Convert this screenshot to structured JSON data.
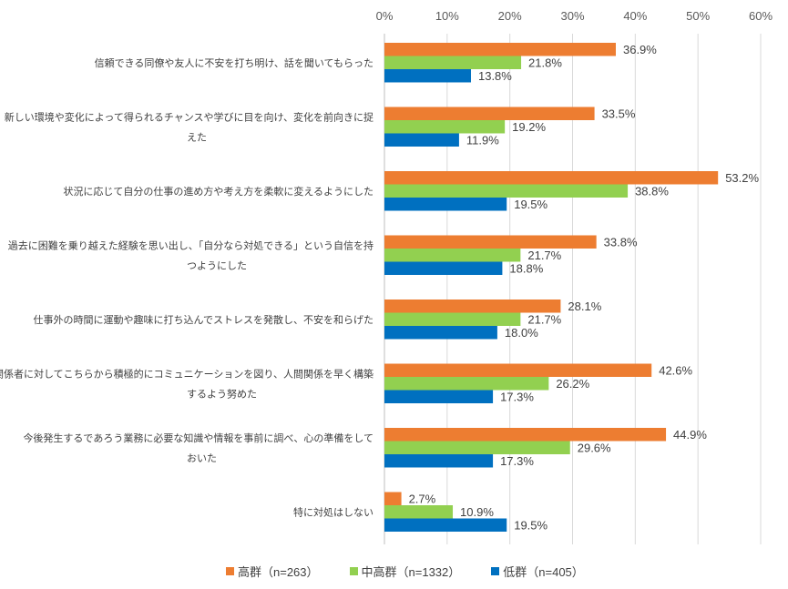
{
  "chart_data": {
    "type": "bar",
    "orientation": "horizontal",
    "title": "",
    "xlabel": "",
    "ylabel": "",
    "xlim": [
      0,
      60
    ],
    "ticks": [
      0,
      10,
      20,
      30,
      40,
      50,
      60
    ],
    "tick_labels": [
      "0%",
      "10%",
      "20%",
      "30%",
      "40%",
      "50%",
      "60%"
    ],
    "value_suffix": "%",
    "grid": true,
    "legend_position": "bottom",
    "categories": [
      [
        "信頼できる同僚や友人に不安を打ち明け、話を聞いてもらった"
      ],
      [
        "新しい環境や変化によって得られるチャンスや学びに目を向け、変化を前向きに捉",
        "えた"
      ],
      [
        "状況に応じて自分の仕事の進め方や考え方を柔軟に変えるようにした"
      ],
      [
        "過去に困難を乗り越えた経験を思い出し、「自分なら対処できる」という自信を持",
        "つようにした"
      ],
      [
        "仕事外の時間に運動や趣味に打ち込んでストレスを発散し、不安を和らげた"
      ],
      [
        "関係者に対してこちらから積極的にコミュニケーションを図り、人間関係を早く構築",
        "するよう努めた"
      ],
      [
        "今後発生するであろう業務に必要な知識や情報を事前に調べ、心の準備をして",
        "おいた"
      ],
      [
        "特に対処はしない"
      ]
    ],
    "series": [
      {
        "name": "高群（n=263）",
        "color": "#ED7D31",
        "values": [
          36.9,
          33.5,
          53.2,
          33.8,
          28.1,
          42.6,
          44.9,
          2.7
        ]
      },
      {
        "name": "中高群（n=1332）",
        "color": "#92D050",
        "values": [
          21.8,
          19.2,
          38.8,
          21.7,
          21.7,
          26.2,
          29.6,
          10.9
        ]
      },
      {
        "name": "低群（n=405）",
        "color": "#0070C0",
        "values": [
          13.8,
          11.9,
          19.5,
          18.8,
          18.0,
          17.3,
          17.3,
          19.5
        ]
      }
    ]
  }
}
